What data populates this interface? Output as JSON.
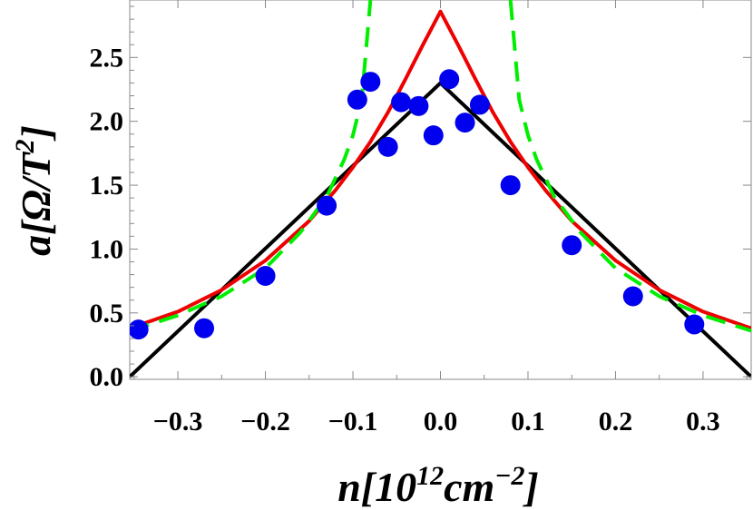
{
  "chart_data": {
    "type": "scatter",
    "title": "",
    "xlabel": {
      "base": "n[10",
      "sup1": "12",
      "mid": "cm",
      "sup2": "−2",
      "close": "]"
    },
    "ylabel": {
      "base": "a[Ω/T",
      "sup": "2",
      "close": "]"
    },
    "xlim": [
      -0.355,
      0.355
    ],
    "ylim": [
      -0.02,
      2.95
    ],
    "x_ticks": [
      -0.3,
      -0.2,
      -0.1,
      0.0,
      0.1,
      0.2,
      0.3
    ],
    "x_tick_labels": [
      "−0.3",
      "−0.2",
      "−0.1",
      "0.0",
      "0.1",
      "0.2",
      "0.3"
    ],
    "y_ticks": [
      0.0,
      0.5,
      1.0,
      1.5,
      2.0,
      2.5
    ],
    "y_tick_labels": [
      "0.0",
      "0.5",
      "1.0",
      "1.5",
      "2.0",
      "2.5"
    ],
    "grid": false,
    "series": [
      {
        "kind": "points",
        "color": "#0000ee",
        "x": [
          -0.345,
          -0.27,
          -0.2,
          -0.13,
          -0.095,
          -0.08,
          -0.06,
          -0.045,
          -0.025,
          -0.008,
          0.01,
          0.028,
          0.045,
          0.08,
          0.15,
          0.22,
          0.29
        ],
        "y": [
          0.37,
          0.38,
          0.79,
          1.34,
          2.17,
          2.31,
          1.8,
          2.15,
          2.12,
          1.89,
          2.33,
          1.99,
          2.13,
          1.5,
          1.03,
          0.63,
          0.41
        ]
      },
      {
        "kind": "line",
        "color": "#000000",
        "style": "solid",
        "x": [
          -0.355,
          0.0,
          0.355
        ],
        "y": [
          0.0,
          2.3,
          0.0
        ]
      },
      {
        "kind": "line",
        "color": "#ee0000",
        "style": "solid",
        "x": [
          -0.355,
          -0.3,
          -0.25,
          -0.2,
          -0.15,
          -0.12,
          -0.1,
          -0.08,
          -0.06,
          -0.04,
          -0.02,
          0.0,
          0.02,
          0.04,
          0.06,
          0.08,
          0.1,
          0.12,
          0.15,
          0.2,
          0.25,
          0.3,
          0.355
        ],
        "y": [
          0.38,
          0.51,
          0.68,
          0.91,
          1.22,
          1.46,
          1.64,
          1.84,
          2.07,
          2.33,
          2.6,
          2.86,
          2.6,
          2.33,
          2.07,
          1.84,
          1.64,
          1.46,
          1.22,
          0.91,
          0.68,
          0.51,
          0.38
        ]
      },
      {
        "kind": "line",
        "color": "#00ee00",
        "style": "dashed",
        "segments": [
          {
            "x": [
              -0.355,
              -0.3,
              -0.25,
              -0.2,
              -0.16,
              -0.13,
              -0.11,
              -0.1,
              -0.09,
              -0.08
            ],
            "y": [
              0.36,
              0.48,
              0.63,
              0.85,
              1.13,
              1.41,
              1.7,
              1.89,
              2.17,
              2.95
            ]
          },
          {
            "x": [
              0.08,
              0.09,
              0.1,
              0.11,
              0.13,
              0.16,
              0.2,
              0.25,
              0.3,
              0.355
            ],
            "y": [
              2.95,
              2.17,
              1.89,
              1.7,
              1.41,
              1.13,
              0.85,
              0.63,
              0.48,
              0.36
            ]
          }
        ]
      }
    ]
  }
}
